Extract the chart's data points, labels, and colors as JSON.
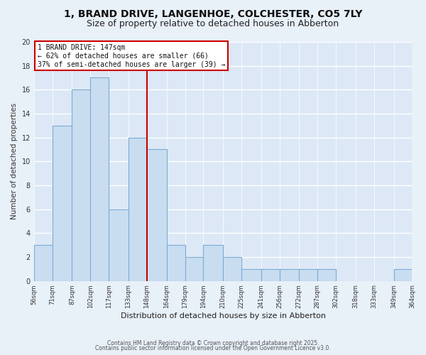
{
  "title": "1, BRAND DRIVE, LANGENHOE, COLCHESTER, CO5 7LY",
  "subtitle": "Size of property relative to detached houses in Abberton",
  "xlabel": "Distribution of detached houses by size in Abberton",
  "ylabel": "Number of detached properties",
  "bar_edges": [
    56,
    71,
    87,
    102,
    117,
    133,
    148,
    164,
    179,
    194,
    210,
    225,
    241,
    256,
    272,
    287,
    302,
    318,
    333,
    349,
    364
  ],
  "bar_heights": [
    3,
    13,
    16,
    17,
    6,
    12,
    11,
    3,
    2,
    3,
    2,
    1,
    1,
    1,
    1,
    1,
    0,
    0,
    0,
    1
  ],
  "bar_color": "#c9ddf0",
  "bar_edgecolor": "#7bacd6",
  "property_line_x": 148,
  "property_line_color": "#cc0000",
  "annotation_title": "1 BRAND DRIVE: 147sqm",
  "annotation_line1": "← 62% of detached houses are smaller (66)",
  "annotation_line2": "37% of semi-detached houses are larger (39) →",
  "annotation_box_edgecolor": "#cc0000",
  "annotation_box_facecolor": "#ffffff",
  "ylim": [
    0,
    20
  ],
  "yticks": [
    0,
    2,
    4,
    6,
    8,
    10,
    12,
    14,
    16,
    18,
    20
  ],
  "background_color": "#e8f0f8",
  "plot_bg_color": "#dce8f5",
  "grid_color": "#ffffff",
  "footer_line1": "Contains HM Land Registry data © Crown copyright and database right 2025.",
  "footer_line2": "Contains public sector information licensed under the Open Government Licence v3.0.",
  "title_fontsize": 10,
  "subtitle_fontsize": 9
}
